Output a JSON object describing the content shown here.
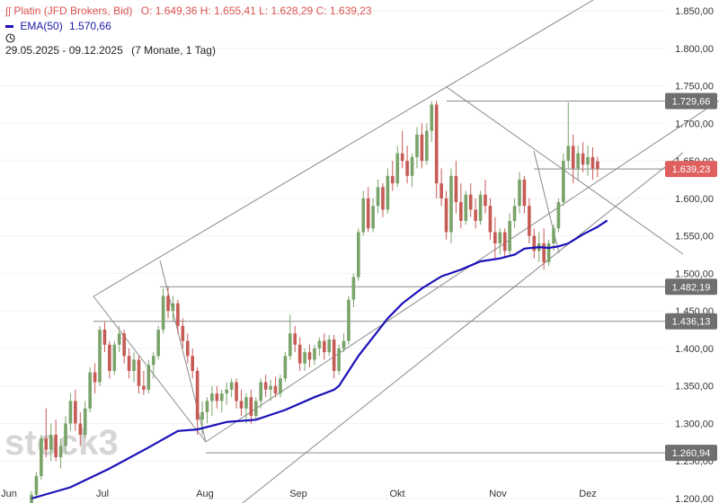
{
  "header": {
    "instrument": "Platin (JFD Brokers, Bid)",
    "ohlc": "O: 1.649,36  H: 1.655,41  L: 1.628,29  C: 1.639,23",
    "ema_label": "EMA(50)",
    "ema_value": "1.570,66",
    "period": "29.05.2025 - 09.12.2025",
    "period_detail": "(7 Monate, 1 Tag)",
    "icon": "clock-icon"
  },
  "watermark": "stock3",
  "colors": {
    "up": "#7aa36a",
    "down": "#c65a55",
    "ema": "#1a10b8",
    "line": "#8a8a8a",
    "label_bg": "#6f6f6f",
    "price_label_bg": "#e06060",
    "header_red": "#d9534f"
  },
  "chart_data": {
    "type": "candlestick",
    "y_axis": {
      "ticks": [
        "1.850,00",
        "1.800,00",
        "1.750,00",
        "1.700,00",
        "1.650,00",
        "1.600,00",
        "1.550,00",
        "1.500,00",
        "1.450,00",
        "1.400,00",
        "1.350,00",
        "1.300,00",
        "1.250,00",
        "1.200,00"
      ],
      "range": [
        1200,
        1850
      ]
    },
    "x_axis": {
      "labels": [
        "Jun",
        "Jul",
        "Aug",
        "Sep",
        "Okt",
        "Nov",
        "Dez"
      ]
    },
    "price_labels": [
      {
        "label": "1.729,66",
        "value": 1729.66,
        "type": "level"
      },
      {
        "label": "1.639,23",
        "value": 1639.23,
        "type": "current"
      },
      {
        "label": "1.482,19",
        "value": 1482.19,
        "type": "level"
      },
      {
        "label": "1.436,13",
        "value": 1436.13,
        "type": "level"
      },
      {
        "label": "1.260,94",
        "value": 1260.94,
        "type": "level"
      }
    ],
    "candles": [
      [
        1190,
        1210,
        1185,
        1205
      ],
      [
        1205,
        1235,
        1200,
        1230
      ],
      [
        1230,
        1285,
        1225,
        1280
      ],
      [
        1280,
        1320,
        1255,
        1265
      ],
      [
        1265,
        1300,
        1250,
        1285
      ],
      [
        1285,
        1305,
        1250,
        1255
      ],
      [
        1255,
        1280,
        1240,
        1270
      ],
      [
        1270,
        1310,
        1260,
        1300
      ],
      [
        1300,
        1340,
        1290,
        1330
      ],
      [
        1330,
        1345,
        1290,
        1300
      ],
      [
        1300,
        1315,
        1270,
        1285
      ],
      [
        1285,
        1330,
        1280,
        1320
      ],
      [
        1320,
        1375,
        1315,
        1368
      ],
      [
        1368,
        1380,
        1340,
        1355
      ],
      [
        1355,
        1430,
        1350,
        1425
      ],
      [
        1425,
        1435,
        1395,
        1405
      ],
      [
        1405,
        1410,
        1360,
        1370
      ],
      [
        1370,
        1410,
        1365,
        1405
      ],
      [
        1405,
        1430,
        1395,
        1420
      ],
      [
        1420,
        1425,
        1380,
        1390
      ],
      [
        1390,
        1400,
        1360,
        1370
      ],
      [
        1370,
        1395,
        1355,
        1385
      ],
      [
        1385,
        1390,
        1340,
        1350
      ],
      [
        1350,
        1370,
        1338,
        1345
      ],
      [
        1345,
        1385,
        1340,
        1378
      ],
      [
        1378,
        1395,
        1360,
        1390
      ],
      [
        1390,
        1430,
        1385,
        1425
      ],
      [
        1425,
        1480,
        1420,
        1470
      ],
      [
        1470,
        1482,
        1440,
        1450
      ],
      [
        1450,
        1470,
        1435,
        1460
      ],
      [
        1460,
        1465,
        1420,
        1430
      ],
      [
        1430,
        1440,
        1400,
        1410
      ],
      [
        1410,
        1420,
        1380,
        1390
      ],
      [
        1390,
        1400,
        1360,
        1370
      ],
      [
        1370,
        1375,
        1285,
        1305
      ],
      [
        1305,
        1330,
        1285,
        1315
      ],
      [
        1315,
        1335,
        1300,
        1330
      ],
      [
        1330,
        1350,
        1310,
        1340
      ],
      [
        1340,
        1350,
        1320,
        1330
      ],
      [
        1330,
        1345,
        1315,
        1340
      ],
      [
        1340,
        1355,
        1325,
        1345
      ],
      [
        1345,
        1360,
        1335,
        1355
      ],
      [
        1355,
        1360,
        1320,
        1330
      ],
      [
        1330,
        1345,
        1310,
        1320
      ],
      [
        1320,
        1340,
        1300,
        1335
      ],
      [
        1335,
        1345,
        1300,
        1310
      ],
      [
        1310,
        1335,
        1305,
        1330
      ],
      [
        1330,
        1360,
        1320,
        1355
      ],
      [
        1355,
        1365,
        1335,
        1345
      ],
      [
        1345,
        1358,
        1330,
        1350
      ],
      [
        1350,
        1362,
        1335,
        1340
      ],
      [
        1340,
        1365,
        1335,
        1360
      ],
      [
        1360,
        1395,
        1355,
        1390
      ],
      [
        1390,
        1445,
        1385,
        1420
      ],
      [
        1420,
        1430,
        1395,
        1405
      ],
      [
        1405,
        1415,
        1370,
        1380
      ],
      [
        1380,
        1400,
        1370,
        1395
      ],
      [
        1395,
        1405,
        1375,
        1385
      ],
      [
        1385,
        1405,
        1378,
        1400
      ],
      [
        1400,
        1415,
        1390,
        1410
      ],
      [
        1410,
        1420,
        1385,
        1395
      ],
      [
        1395,
        1418,
        1390,
        1412
      ],
      [
        1412,
        1418,
        1360,
        1370
      ],
      [
        1370,
        1405,
        1365,
        1400
      ],
      [
        1400,
        1420,
        1395,
        1410
      ],
      [
        1410,
        1470,
        1405,
        1465
      ],
      [
        1465,
        1500,
        1455,
        1495
      ],
      [
        1495,
        1560,
        1490,
        1555
      ],
      [
        1555,
        1610,
        1550,
        1600
      ],
      [
        1600,
        1615,
        1555,
        1560
      ],
      [
        1560,
        1600,
        1555,
        1590
      ],
      [
        1590,
        1625,
        1580,
        1615
      ],
      [
        1615,
        1620,
        1575,
        1585
      ],
      [
        1585,
        1640,
        1580,
        1630
      ],
      [
        1630,
        1650,
        1610,
        1620
      ],
      [
        1620,
        1670,
        1615,
        1660
      ],
      [
        1660,
        1690,
        1640,
        1650
      ],
      [
        1650,
        1670,
        1620,
        1630
      ],
      [
        1630,
        1660,
        1615,
        1655
      ],
      [
        1655,
        1695,
        1640,
        1685
      ],
      [
        1685,
        1700,
        1640,
        1650
      ],
      [
        1650,
        1700,
        1645,
        1690
      ],
      [
        1690,
        1730,
        1675,
        1725
      ],
      [
        1725,
        1730,
        1600,
        1620
      ],
      [
        1620,
        1640,
        1590,
        1600
      ],
      [
        1600,
        1610,
        1545,
        1555
      ],
      [
        1555,
        1640,
        1540,
        1630
      ],
      [
        1630,
        1650,
        1580,
        1595
      ],
      [
        1595,
        1620,
        1560,
        1570
      ],
      [
        1570,
        1610,
        1565,
        1605
      ],
      [
        1605,
        1620,
        1575,
        1585
      ],
      [
        1585,
        1600,
        1560,
        1570
      ],
      [
        1570,
        1610,
        1565,
        1605
      ],
      [
        1605,
        1625,
        1580,
        1590
      ],
      [
        1590,
        1600,
        1545,
        1555
      ],
      [
        1555,
        1575,
        1520,
        1540
      ],
      [
        1540,
        1560,
        1525,
        1555
      ],
      [
        1555,
        1560,
        1520,
        1530
      ],
      [
        1530,
        1580,
        1525,
        1570
      ],
      [
        1570,
        1600,
        1560,
        1590
      ],
      [
        1590,
        1635,
        1580,
        1625
      ],
      [
        1625,
        1630,
        1580,
        1590
      ],
      [
        1590,
        1600,
        1540,
        1550
      ],
      [
        1550,
        1560,
        1520,
        1530
      ],
      [
        1530,
        1555,
        1515,
        1540
      ],
      [
        1540,
        1560,
        1505,
        1515
      ],
      [
        1515,
        1545,
        1510,
        1540
      ],
      [
        1540,
        1565,
        1530,
        1560
      ],
      [
        1560,
        1600,
        1555,
        1595
      ],
      [
        1595,
        1660,
        1590,
        1650
      ],
      [
        1650,
        1728,
        1640,
        1670
      ],
      [
        1670,
        1685,
        1620,
        1640
      ],
      [
        1640,
        1670,
        1625,
        1660
      ],
      [
        1660,
        1675,
        1635,
        1645
      ],
      [
        1645,
        1670,
        1630,
        1655
      ],
      [
        1655,
        1668,
        1625,
        1640
      ],
      [
        1649.36,
        1655.41,
        1628.29,
        1639.23
      ]
    ],
    "ema": {
      "name": "EMA(50)",
      "points": [
        [
          0,
          1200
        ],
        [
          8,
          1215
        ],
        [
          16,
          1240
        ],
        [
          24,
          1268
        ],
        [
          30,
          1290
        ],
        [
          34,
          1292
        ],
        [
          40,
          1302
        ],
        [
          46,
          1305
        ],
        [
          52,
          1318
        ],
        [
          58,
          1335
        ],
        [
          62,
          1345
        ],
        [
          63,
          1350
        ],
        [
          67,
          1390
        ],
        [
          70,
          1415
        ],
        [
          73,
          1440
        ],
        [
          76,
          1460
        ],
        [
          80,
          1480
        ],
        [
          84,
          1496
        ],
        [
          88,
          1505
        ],
        [
          92,
          1516
        ],
        [
          96,
          1520
        ],
        [
          99,
          1525
        ],
        [
          101,
          1533
        ],
        [
          104,
          1535
        ],
        [
          106,
          1534
        ],
        [
          108,
          1536
        ],
        [
          110,
          1540
        ],
        [
          113,
          1552
        ],
        [
          116,
          1562
        ],
        [
          118,
          1570.66
        ]
      ]
    }
  }
}
